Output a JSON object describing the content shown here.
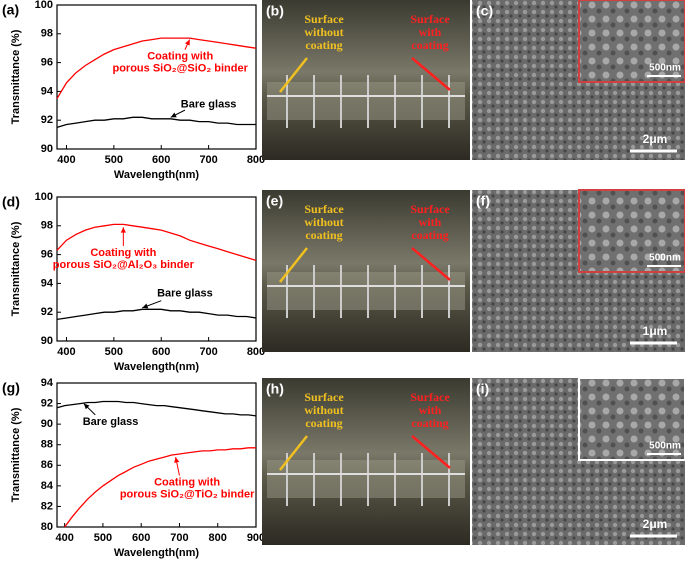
{
  "chart_data": [
    {
      "type": "line",
      "panel_label": "(a)",
      "y_label": "Transmittance (%)",
      "x_label": "Wavelength(nm)",
      "x": [
        380,
        400,
        420,
        440,
        460,
        480,
        500,
        520,
        540,
        560,
        580,
        600,
        620,
        640,
        660,
        680,
        700,
        720,
        740,
        760,
        780,
        800
      ],
      "xlim": [
        380,
        800
      ],
      "xticks": [
        400,
        500,
        600,
        700,
        800
      ],
      "ylim": [
        90,
        100
      ],
      "yticks": [
        90,
        92,
        94,
        96,
        98,
        100
      ],
      "series": [
        {
          "label_lines": [
            "Coating with",
            "porous SiO₂@SiO₂ binder"
          ],
          "color": "#ff0000",
          "values": [
            93.5,
            94.6,
            95.3,
            95.8,
            96.2,
            96.6,
            96.9,
            97.1,
            97.3,
            97.5,
            97.6,
            97.7,
            97.7,
            97.7,
            97.7,
            97.6,
            97.5,
            97.4,
            97.3,
            97.2,
            97.1,
            97.0
          ]
        },
        {
          "label_lines": [
            "Bare glass"
          ],
          "color": "#000000",
          "values": [
            91.5,
            91.7,
            91.8,
            91.9,
            92.0,
            92.0,
            92.1,
            92.1,
            92.2,
            92.2,
            92.1,
            92.1,
            92.1,
            92.0,
            92.0,
            91.9,
            91.9,
            91.8,
            91.8,
            91.7,
            91.7,
            91.7
          ]
        }
      ]
    },
    {
      "type": "line",
      "panel_label": "(d)",
      "y_label": "Transmittance (%)",
      "x_label": "Wavelength(nm)",
      "x": [
        380,
        400,
        420,
        440,
        460,
        480,
        500,
        520,
        540,
        560,
        580,
        600,
        620,
        640,
        660,
        680,
        700,
        720,
        740,
        760,
        780,
        800
      ],
      "xlim": [
        380,
        800
      ],
      "xticks": [
        400,
        500,
        600,
        700,
        800
      ],
      "ylim": [
        90,
        100
      ],
      "yticks": [
        90,
        92,
        94,
        96,
        98,
        100
      ],
      "series": [
        {
          "label_lines": [
            "Coating with",
            "porous SiO₂@Al₂O₃ binder"
          ],
          "color": "#ff0000",
          "values": [
            96.3,
            97.0,
            97.4,
            97.7,
            97.9,
            98.0,
            98.1,
            98.1,
            98.0,
            97.9,
            97.8,
            97.7,
            97.5,
            97.3,
            97.0,
            96.8,
            96.6,
            96.4,
            96.2,
            96.0,
            95.8,
            95.6
          ]
        },
        {
          "label_lines": [
            "Bare glass"
          ],
          "color": "#000000",
          "values": [
            91.5,
            91.6,
            91.7,
            91.8,
            91.9,
            92.0,
            92.0,
            92.1,
            92.1,
            92.2,
            92.2,
            92.2,
            92.1,
            92.1,
            92.0,
            92.0,
            91.9,
            91.8,
            91.8,
            91.7,
            91.7,
            91.6
          ]
        }
      ]
    },
    {
      "type": "line",
      "panel_label": "(g)",
      "y_label": "Transmittance (%)",
      "x_label": "Wavelength(nm)",
      "x": [
        380,
        400,
        420,
        440,
        460,
        480,
        500,
        520,
        540,
        560,
        580,
        600,
        620,
        640,
        660,
        680,
        700,
        720,
        740,
        760,
        780,
        800,
        820,
        840,
        860,
        880,
        900
      ],
      "xlim": [
        380,
        900
      ],
      "xticks": [
        400,
        500,
        600,
        700,
        800,
        900
      ],
      "ylim": [
        80,
        94
      ],
      "yticks": [
        80,
        82,
        84,
        86,
        88,
        90,
        92,
        94
      ],
      "series": [
        {
          "label_lines": [
            "Bare glass"
          ],
          "color": "#000000",
          "values": [
            91.6,
            91.8,
            91.9,
            92.0,
            92.1,
            92.1,
            92.2,
            92.2,
            92.2,
            92.1,
            92.1,
            92.0,
            91.9,
            91.8,
            91.8,
            91.7,
            91.6,
            91.5,
            91.4,
            91.3,
            91.2,
            91.1,
            91.0,
            91.0,
            90.9,
            90.9,
            90.8
          ]
        },
        {
          "label_lines": [
            "Coating with",
            "porous SiO₂@TiO₂ binder"
          ],
          "color": "#ff0000",
          "values": [
            null,
            80.0,
            81.0,
            81.9,
            82.7,
            83.4,
            84.0,
            84.5,
            85.0,
            85.4,
            85.8,
            86.1,
            86.4,
            86.6,
            86.8,
            87.0,
            87.1,
            87.2,
            87.3,
            87.4,
            87.4,
            87.5,
            87.5,
            87.6,
            87.6,
            87.7,
            87.7
          ]
        }
      ]
    }
  ],
  "photos": [
    {
      "label": "(b)",
      "left_lines": [
        "Surface",
        "without",
        "coating"
      ],
      "right_lines": [
        "Surface",
        "with",
        "coating"
      ]
    },
    {
      "label": "(c)",
      "inset_scale": "500nm",
      "scale": "2μm"
    },
    {
      "label": "(e)",
      "left_lines": [
        "Surface",
        "without",
        "coating"
      ],
      "right_lines": [
        "Surface",
        "with",
        "coating"
      ]
    },
    {
      "label": "(f)",
      "inset_scale": "500nm",
      "scale": "1μm"
    },
    {
      "label": "(h)",
      "left_lines": [
        "Surface",
        "without",
        "coating"
      ],
      "right_lines": [
        "Surface",
        "with",
        "coating"
      ]
    },
    {
      "label": "(i)",
      "inset_scale": "500nm",
      "scale": "2μm"
    }
  ]
}
